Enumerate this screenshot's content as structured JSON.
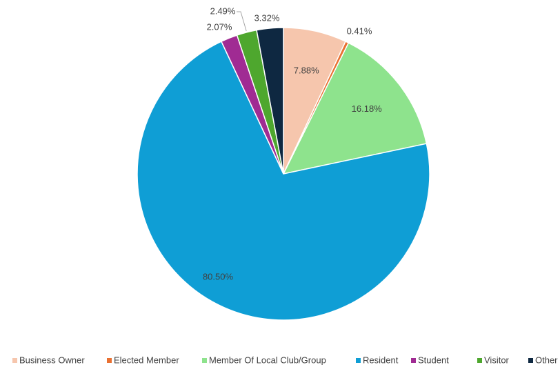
{
  "chart_data": {
    "type": "pie",
    "categories": [
      "Business Owner",
      "Elected Member",
      "Member Of Local Club/Group",
      "Resident",
      "Student",
      "Visitor",
      "Other"
    ],
    "values": [
      7.88,
      0.41,
      16.18,
      80.5,
      2.07,
      2.49,
      3.32
    ],
    "value_labels": [
      "7.88%",
      "0.41%",
      "16.18%",
      "80.50%",
      "2.07%",
      "2.49%",
      "3.32%"
    ],
    "colors": [
      "#f6c6ad",
      "#e97132",
      "#8ee38d",
      "#0f9ed5",
      "#a02b93",
      "#4ea72e",
      "#0e2841"
    ],
    "legend": "bottom"
  }
}
